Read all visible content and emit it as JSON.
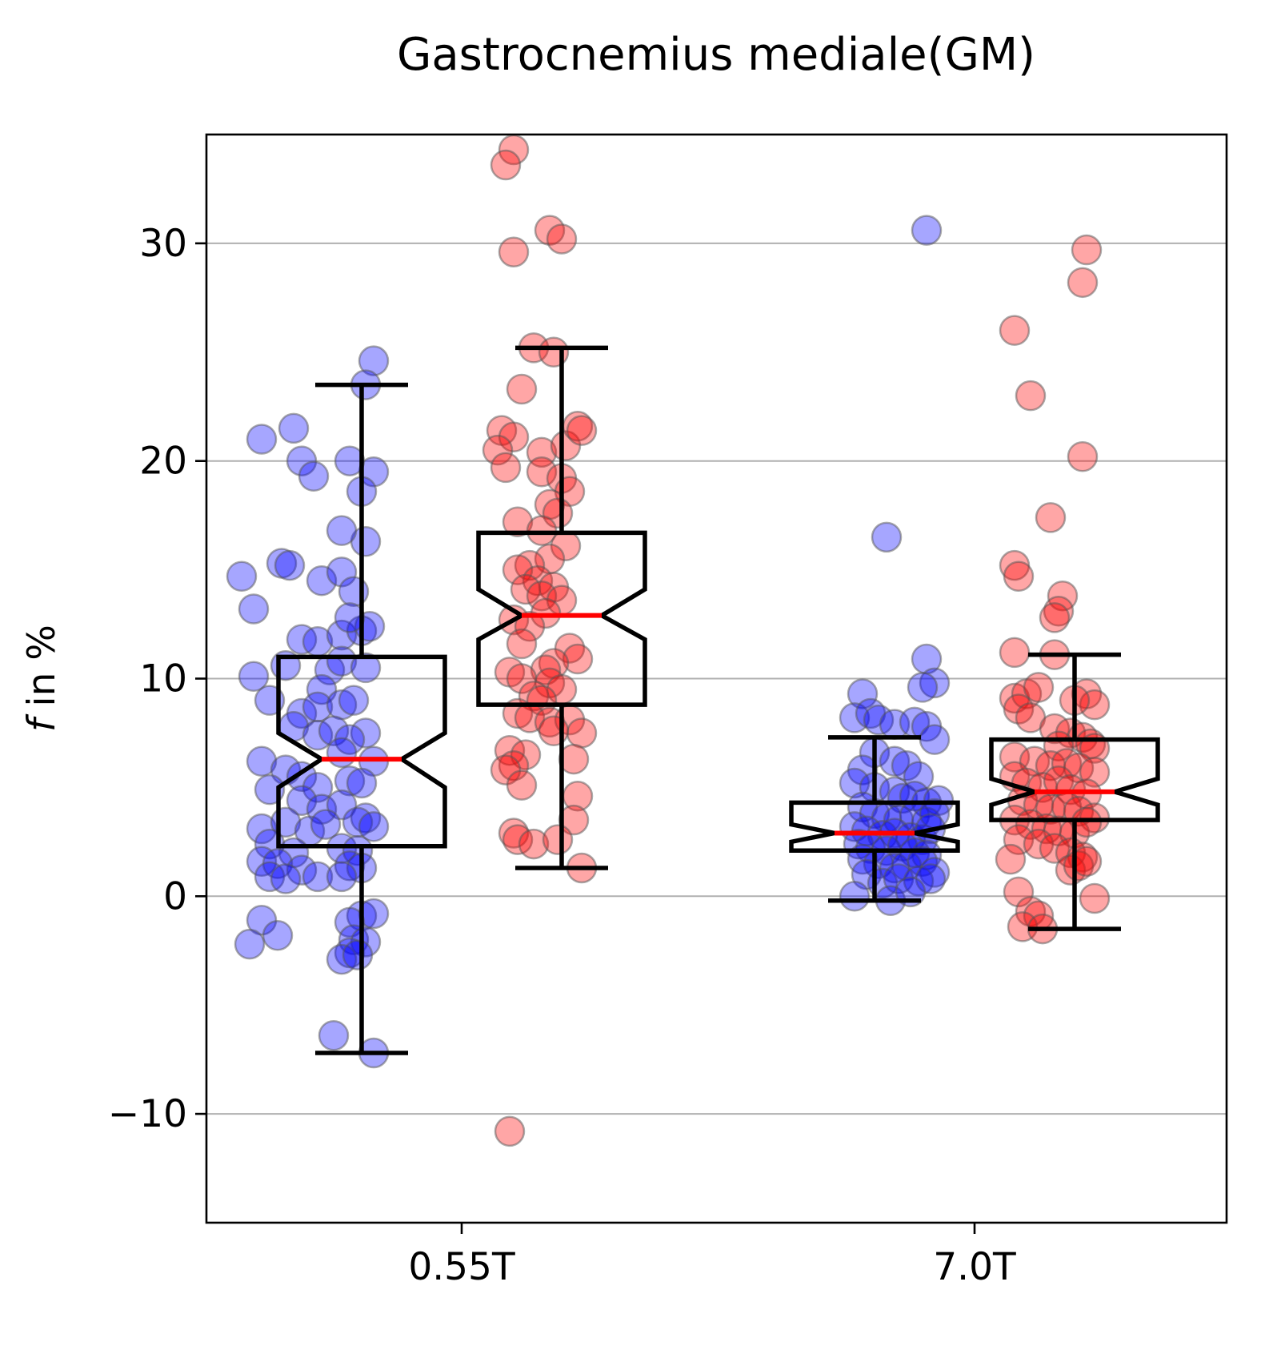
{
  "chart_data": {
    "type": "box",
    "title": "Gastrocnemius mediale(GM)",
    "xlabel": "",
    "ylabel": "f in %",
    "ylabel_parts": {
      "italic": "f",
      "rest": " in %"
    },
    "categories": [
      "0.55T",
      "7.0T"
    ],
    "ylim": [
      -15,
      35
    ],
    "yticks": [
      -10,
      0,
      10,
      20,
      30
    ],
    "ytick_labels": [
      "−10",
      "0",
      "10",
      "20",
      "30"
    ],
    "grid": "horizontal",
    "notched": true,
    "colors": {
      "blue_points": "#0000ff",
      "red_points": "#ff0000",
      "median": "#ff0000",
      "box": "#000000",
      "grid": "#b0b0b0"
    },
    "series": [
      {
        "category": "0.55T",
        "color": "blue",
        "box": {
          "whisker_low": -7.2,
          "q1": 2.3,
          "median": 6.3,
          "q3": 11.0,
          "whisker_high": 23.5,
          "notch_low": 5.0,
          "notch_high": 7.5
        },
        "points": [
          [
            -0.22,
            24.6
          ],
          [
            -0.24,
            23.5
          ],
          [
            -0.22,
            19.5
          ],
          [
            -0.25,
            18.6
          ],
          [
            -0.24,
            16.3
          ],
          [
            -0.3,
            16.8
          ],
          [
            -0.5,
            21.0
          ],
          [
            -0.42,
            21.5
          ],
          [
            -0.4,
            20.0
          ],
          [
            -0.37,
            19.3
          ],
          [
            -0.28,
            20.0
          ],
          [
            -0.55,
            14.7
          ],
          [
            -0.45,
            15.3
          ],
          [
            -0.43,
            15.2
          ],
          [
            -0.35,
            14.5
          ],
          [
            -0.3,
            14.9
          ],
          [
            -0.27,
            14.0
          ],
          [
            -0.52,
            13.2
          ],
          [
            -0.4,
            11.8
          ],
          [
            -0.36,
            11.7
          ],
          [
            -0.3,
            12.0
          ],
          [
            -0.25,
            12.2
          ],
          [
            -0.23,
            12.4
          ],
          [
            -0.28,
            12.8
          ],
          [
            -0.52,
            10.1
          ],
          [
            -0.44,
            10.6
          ],
          [
            -0.33,
            10.4
          ],
          [
            -0.3,
            10.8
          ],
          [
            -0.24,
            10.5
          ],
          [
            -0.35,
            9.5
          ],
          [
            -0.48,
            9.0
          ],
          [
            -0.4,
            8.4
          ],
          [
            -0.36,
            8.7
          ],
          [
            -0.3,
            8.8
          ],
          [
            -0.27,
            9.0
          ],
          [
            -0.24,
            7.5
          ],
          [
            -0.42,
            7.8
          ],
          [
            -0.36,
            7.4
          ],
          [
            -0.32,
            7.6
          ],
          [
            -0.28,
            7.2
          ],
          [
            -0.3,
            6.6
          ],
          [
            -0.22,
            6.2
          ],
          [
            -0.5,
            6.2
          ],
          [
            -0.44,
            5.8
          ],
          [
            -0.4,
            5.5
          ],
          [
            -0.36,
            5.0
          ],
          [
            -0.28,
            5.3
          ],
          [
            -0.25,
            5.2
          ],
          [
            -0.48,
            4.9
          ],
          [
            -0.4,
            4.4
          ],
          [
            -0.35,
            4.0
          ],
          [
            -0.3,
            4.2
          ],
          [
            -0.24,
            3.6
          ],
          [
            -0.5,
            3.1
          ],
          [
            -0.44,
            3.4
          ],
          [
            -0.38,
            3.0
          ],
          [
            -0.34,
            3.3
          ],
          [
            -0.26,
            3.4
          ],
          [
            -0.22,
            3.2
          ],
          [
            -0.48,
            2.4
          ],
          [
            -0.42,
            2.0
          ],
          [
            -0.3,
            2.2
          ],
          [
            -0.26,
            2.1
          ],
          [
            -0.5,
            1.6
          ],
          [
            -0.46,
            1.5
          ],
          [
            -0.4,
            1.2
          ],
          [
            -0.36,
            0.9
          ],
          [
            -0.28,
            1.4
          ],
          [
            -0.25,
            1.3
          ],
          [
            -0.48,
            0.9
          ],
          [
            -0.44,
            0.8
          ],
          [
            -0.3,
            0.9
          ],
          [
            -0.5,
            -1.1
          ],
          [
            -0.25,
            -0.9
          ],
          [
            -0.22,
            -0.8
          ],
          [
            -0.28,
            -1.2
          ],
          [
            -0.53,
            -2.2
          ],
          [
            -0.46,
            -1.8
          ],
          [
            -0.27,
            -2.0
          ],
          [
            -0.24,
            -2.1
          ],
          [
            -0.28,
            -2.6
          ],
          [
            -0.3,
            -2.9
          ],
          [
            -0.26,
            -2.7
          ],
          [
            -0.32,
            -6.4
          ],
          [
            -0.22,
            -7.2
          ]
        ]
      },
      {
        "category": "0.55T",
        "color": "red",
        "box": {
          "whisker_low": 1.3,
          "q1": 8.8,
          "median": 12.9,
          "q3": 16.7,
          "whisker_high": 25.2,
          "notch_low": 11.8,
          "notch_high": 14.1
        },
        "points": [
          [
            0.13,
            34.3
          ],
          [
            0.11,
            33.6
          ],
          [
            0.22,
            30.6
          ],
          [
            0.25,
            30.2
          ],
          [
            0.13,
            29.6
          ],
          [
            0.18,
            25.2
          ],
          [
            0.23,
            25.0
          ],
          [
            0.15,
            23.3
          ],
          [
            0.1,
            21.4
          ],
          [
            0.13,
            21.1
          ],
          [
            0.09,
            20.5
          ],
          [
            0.11,
            19.7
          ],
          [
            0.2,
            20.4
          ],
          [
            0.26,
            20.7
          ],
          [
            0.29,
            21.6
          ],
          [
            0.3,
            21.4
          ],
          [
            0.2,
            19.5
          ],
          [
            0.25,
            19.2
          ],
          [
            0.27,
            18.6
          ],
          [
            0.22,
            18.0
          ],
          [
            0.14,
            17.2
          ],
          [
            0.24,
            17.6
          ],
          [
            0.2,
            16.8
          ],
          [
            0.26,
            16.1
          ],
          [
            0.22,
            15.5
          ],
          [
            0.17,
            15.2
          ],
          [
            0.14,
            15.0
          ],
          [
            0.19,
            14.5
          ],
          [
            0.23,
            14.2
          ],
          [
            0.16,
            14.1
          ],
          [
            0.2,
            13.8
          ],
          [
            0.25,
            13.6
          ],
          [
            0.21,
            13.0
          ],
          [
            0.13,
            12.7
          ],
          [
            0.17,
            12.4
          ],
          [
            0.15,
            11.6
          ],
          [
            0.27,
            11.4
          ],
          [
            0.29,
            10.9
          ],
          [
            0.23,
            10.7
          ],
          [
            0.21,
            10.4
          ],
          [
            0.12,
            10.3
          ],
          [
            0.15,
            10.0
          ],
          [
            0.22,
            9.8
          ],
          [
            0.25,
            9.5
          ],
          [
            0.18,
            9.2
          ],
          [
            0.2,
            9.0
          ],
          [
            0.14,
            8.4
          ],
          [
            0.17,
            8.2
          ],
          [
            0.22,
            8.0
          ],
          [
            0.27,
            8.1
          ],
          [
            0.3,
            7.5
          ],
          [
            0.23,
            7.6
          ],
          [
            0.12,
            6.7
          ],
          [
            0.16,
            6.5
          ],
          [
            0.13,
            6.0
          ],
          [
            0.11,
            5.8
          ],
          [
            0.15,
            5.1
          ],
          [
            0.28,
            6.3
          ],
          [
            0.29,
            4.6
          ],
          [
            0.28,
            3.5
          ],
          [
            0.13,
            2.9
          ],
          [
            0.14,
            2.6
          ],
          [
            0.18,
            2.4
          ],
          [
            0.24,
            2.6
          ],
          [
            0.3,
            1.3
          ],
          [
            0.12,
            -10.8
          ]
        ]
      },
      {
        "category": "7.0T",
        "color": "blue",
        "box": {
          "whisker_low": -0.2,
          "q1": 2.1,
          "median": 2.9,
          "q3": 4.3,
          "whisker_high": 7.3,
          "notch_low": 2.5,
          "notch_high": 3.3
        },
        "points": [
          [
            -0.12,
            30.6
          ],
          [
            -0.22,
            16.5
          ],
          [
            -0.12,
            10.9
          ],
          [
            -0.1,
            9.8
          ],
          [
            -0.13,
            9.6
          ],
          [
            -0.28,
            9.3
          ],
          [
            -0.3,
            8.2
          ],
          [
            -0.26,
            8.4
          ],
          [
            -0.24,
            8.1
          ],
          [
            -0.2,
            7.9
          ],
          [
            -0.15,
            8.0
          ],
          [
            -0.12,
            7.8
          ],
          [
            -0.1,
            7.2
          ],
          [
            -0.25,
            6.6
          ],
          [
            -0.2,
            6.2
          ],
          [
            -0.17,
            6.0
          ],
          [
            -0.28,
            5.8
          ],
          [
            -0.14,
            5.5
          ],
          [
            -0.3,
            5.2
          ],
          [
            -0.25,
            5.0
          ],
          [
            -0.2,
            4.8
          ],
          [
            -0.18,
            4.5
          ],
          [
            -0.15,
            4.6
          ],
          [
            -0.12,
            4.3
          ],
          [
            -0.09,
            4.4
          ],
          [
            -0.28,
            4.1
          ],
          [
            -0.25,
            3.8
          ],
          [
            -0.22,
            3.6
          ],
          [
            -0.19,
            3.5
          ],
          [
            -0.15,
            3.7
          ],
          [
            -0.12,
            3.4
          ],
          [
            -0.1,
            3.8
          ],
          [
            -0.3,
            3.2
          ],
          [
            -0.27,
            3.0
          ],
          [
            -0.23,
            2.8
          ],
          [
            -0.2,
            2.9
          ],
          [
            -0.16,
            2.7
          ],
          [
            -0.13,
            2.6
          ],
          [
            -0.11,
            3.1
          ],
          [
            -0.29,
            2.4
          ],
          [
            -0.26,
            2.2
          ],
          [
            -0.22,
            2.1
          ],
          [
            -0.18,
            2.3
          ],
          [
            -0.15,
            2.0
          ],
          [
            -0.12,
            1.9
          ],
          [
            -0.28,
            1.7
          ],
          [
            -0.24,
            1.5
          ],
          [
            -0.2,
            1.3
          ],
          [
            -0.17,
            1.4
          ],
          [
            -0.13,
            1.6
          ],
          [
            -0.1,
            1.1
          ],
          [
            -0.27,
            1.0
          ],
          [
            -0.23,
            0.6
          ],
          [
            -0.19,
            0.8
          ],
          [
            -0.14,
            0.7
          ],
          [
            -0.11,
            0.8
          ],
          [
            -0.3,
            0.0
          ],
          [
            -0.21,
            -0.2
          ],
          [
            -0.16,
            0.2
          ]
        ]
      },
      {
        "category": "7.0T",
        "color": "red",
        "box": {
          "whisker_low": -1.5,
          "q1": 3.5,
          "median": 4.8,
          "q3": 7.2,
          "whisker_high": 11.1,
          "notch_low": 4.2,
          "notch_high": 5.4
        },
        "points": [
          [
            0.28,
            29.7
          ],
          [
            0.27,
            28.2
          ],
          [
            0.1,
            26.0
          ],
          [
            0.14,
            23.0
          ],
          [
            0.27,
            20.2
          ],
          [
            0.19,
            17.4
          ],
          [
            0.1,
            15.2
          ],
          [
            0.11,
            14.7
          ],
          [
            0.22,
            13.8
          ],
          [
            0.21,
            13.1
          ],
          [
            0.2,
            12.8
          ],
          [
            0.1,
            11.2
          ],
          [
            0.2,
            11.1
          ],
          [
            0.28,
            9.3
          ],
          [
            0.3,
            8.8
          ],
          [
            0.25,
            9.0
          ],
          [
            0.1,
            9.1
          ],
          [
            0.13,
            9.3
          ],
          [
            0.16,
            9.6
          ],
          [
            0.11,
            8.6
          ],
          [
            0.14,
            8.2
          ],
          [
            0.2,
            7.7
          ],
          [
            0.24,
            7.5
          ],
          [
            0.27,
            7.3
          ],
          [
            0.29,
            7.0
          ],
          [
            0.3,
            6.8
          ],
          [
            0.21,
            6.9
          ],
          [
            0.1,
            6.4
          ],
          [
            0.15,
            6.2
          ],
          [
            0.19,
            6.0
          ],
          [
            0.23,
            6.1
          ],
          [
            0.26,
            5.9
          ],
          [
            0.3,
            5.7
          ],
          [
            0.1,
            5.5
          ],
          [
            0.13,
            5.2
          ],
          [
            0.17,
            5.0
          ],
          [
            0.21,
            5.3
          ],
          [
            0.24,
            4.9
          ],
          [
            0.28,
            4.7
          ],
          [
            0.12,
            4.4
          ],
          [
            0.16,
            4.2
          ],
          [
            0.19,
            4.0
          ],
          [
            0.23,
            4.1
          ],
          [
            0.26,
            3.9
          ],
          [
            0.3,
            3.6
          ],
          [
            0.1,
            3.5
          ],
          [
            0.14,
            3.3
          ],
          [
            0.18,
            3.1
          ],
          [
            0.21,
            3.0
          ],
          [
            0.25,
            2.9
          ],
          [
            0.28,
            3.4
          ],
          [
            0.11,
            2.6
          ],
          [
            0.16,
            2.4
          ],
          [
            0.2,
            2.2
          ],
          [
            0.24,
            2.0
          ],
          [
            0.27,
            1.8
          ],
          [
            0.09,
            1.7
          ],
          [
            0.24,
            1.2
          ],
          [
            0.26,
            1.4
          ],
          [
            0.28,
            1.6
          ],
          [
            0.11,
            0.2
          ],
          [
            0.3,
            -0.1
          ],
          [
            0.14,
            -0.7
          ],
          [
            0.16,
            -0.9
          ],
          [
            0.12,
            -1.4
          ],
          [
            0.17,
            -1.5
          ]
        ]
      }
    ]
  }
}
